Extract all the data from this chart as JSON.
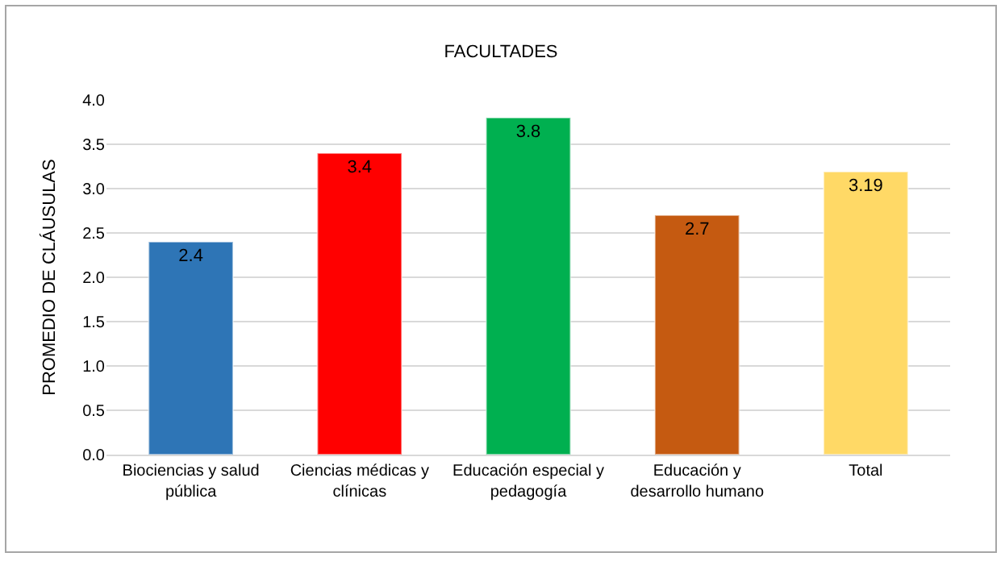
{
  "chart_data": {
    "type": "bar",
    "title": "FACULTADES",
    "ylabel": "PROMEDIO DE CLÁUSULAS",
    "categories": [
      "Biociencias y salud pública",
      "Ciencias médicas y clínicas",
      "Educación especial y pedagogía",
      "Educación y desarrollo humano",
      "Total"
    ],
    "values": [
      2.4,
      3.4,
      3.8,
      2.7,
      3.19
    ],
    "colors": [
      "#2e75b6",
      "#ff0000",
      "#00b050",
      "#c55a11",
      "#ffd966"
    ],
    "ylim": [
      0,
      4
    ],
    "yticks": [
      {
        "value": 0,
        "label": "0.0"
      },
      {
        "value": 0.5,
        "label": "0.5"
      },
      {
        "value": 1,
        "label": "1.0"
      },
      {
        "value": 1.5,
        "label": "1.5"
      },
      {
        "value": 2,
        "label": "2.0"
      },
      {
        "value": 2.5,
        "label": "2.5"
      },
      {
        "value": 3,
        "label": "3.0"
      },
      {
        "value": 3.5,
        "label": "3.5"
      },
      {
        "value": 4,
        "label": "4.0"
      }
    ],
    "grid": "y",
    "data_labels": true
  }
}
